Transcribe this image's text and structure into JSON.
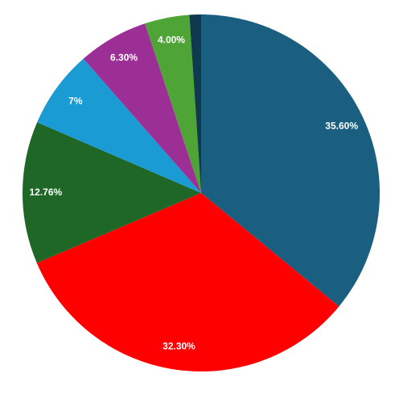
{
  "chart_data": {
    "type": "pie",
    "categories": [
      null,
      null,
      null,
      null,
      null,
      null,
      null
    ],
    "values": [
      35.6,
      32.3,
      12.76,
      7,
      6.3,
      4.0,
      1.04
    ],
    "value_labels": [
      "35.60%",
      "32.30%",
      "12.76%",
      "7%",
      "6.30%",
      "4.00%",
      null
    ],
    "colors": [
      "#1a5f80",
      "#ff0000",
      "#1e6726",
      "#1a9bd3",
      "#9c2f96",
      "#4ea535",
      "#0f3a4e"
    ]
  }
}
